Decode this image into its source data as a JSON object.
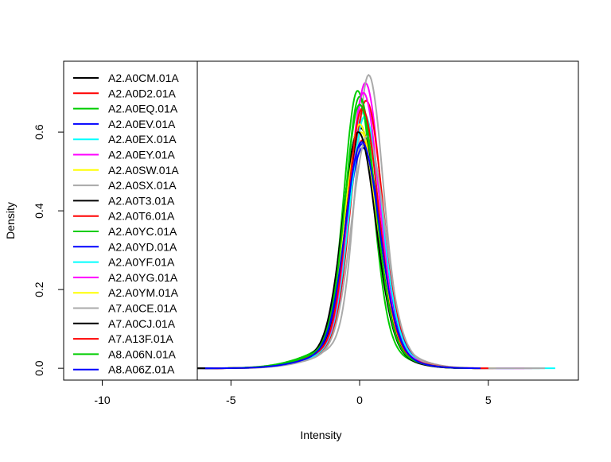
{
  "chart_data": {
    "type": "line",
    "title": "",
    "xlabel": "Intensity",
    "ylabel": "Density",
    "xlim": [
      -11.5,
      8.5
    ],
    "ylim": [
      -0.03,
      0.78
    ],
    "x_ticks": [
      -10,
      -5,
      0,
      5
    ],
    "x_tick_labels": [
      "-10",
      "-5",
      "0",
      "5"
    ],
    "y_ticks": [
      0.0,
      0.2,
      0.4,
      0.6
    ],
    "y_tick_labels": [
      "0.0",
      "0.2",
      "0.4",
      "0.6"
    ],
    "grid": false,
    "legend_position": "top-left",
    "series": [
      {
        "name": "A2.A0CM.01A",
        "color": "#000000",
        "x_min": -6.5,
        "x_max": 4.5,
        "mu": 0.0,
        "sigma_left": 0.58,
        "sigma_right": 0.64,
        "peak": 0.62
      },
      {
        "name": "A2.A0D2.01A",
        "color": "#ff0000",
        "x_min": -6.0,
        "x_max": 4.8,
        "mu": 0.12,
        "sigma_left": 0.6,
        "sigma_right": 0.66,
        "peak": 0.58
      },
      {
        "name": "A2.A0EQ.01A",
        "color": "#00cd00",
        "x_min": -5.5,
        "x_max": 4.2,
        "mu": -0.08,
        "sigma_left": 0.52,
        "sigma_right": 0.58,
        "peak": 0.705
      },
      {
        "name": "A2.A0EV.01A",
        "color": "#0000ff",
        "x_min": -6.2,
        "x_max": 4.6,
        "mu": 0.1,
        "sigma_left": 0.62,
        "sigma_right": 0.7,
        "peak": 0.57
      },
      {
        "name": "A2.A0EX.01A",
        "color": "#00ffff",
        "x_min": -5.0,
        "x_max": 7.6,
        "mu": 0.15,
        "sigma_left": 0.6,
        "sigma_right": 0.66,
        "peak": 0.65
      },
      {
        "name": "A2.A0EY.01A",
        "color": "#ff00ff",
        "x_min": -5.2,
        "x_max": 6.7,
        "mu": 0.22,
        "sigma_left": 0.53,
        "sigma_right": 0.6,
        "peak": 0.725
      },
      {
        "name": "A2.A0SW.01A",
        "color": "#ffff00",
        "x_min": -5.5,
        "x_max": 5.0,
        "mu": 0.05,
        "sigma_left": 0.6,
        "sigma_right": 0.66,
        "peak": 0.6
      },
      {
        "name": "A2.A0SX.01A",
        "color": "#aaaaaa",
        "x_min": -5.8,
        "x_max": 7.2,
        "mu": 0.35,
        "sigma_left": 0.5,
        "sigma_right": 0.56,
        "peak": 0.745
      },
      {
        "name": "A2.A0T3.01A",
        "color": "#000000",
        "x_min": -6.4,
        "x_max": 4.4,
        "mu": 0.05,
        "sigma_left": 0.56,
        "sigma_right": 0.62,
        "peak": 0.61
      },
      {
        "name": "A2.A0T6.01A",
        "color": "#ff0000",
        "x_min": -5.6,
        "x_max": 5.2,
        "mu": 0.25,
        "sigma_left": 0.57,
        "sigma_right": 0.63,
        "peak": 0.68
      },
      {
        "name": "A2.A0YC.01A",
        "color": "#00cd00",
        "x_min": -5.4,
        "x_max": 4.3,
        "mu": 0.0,
        "sigma_left": 0.54,
        "sigma_right": 0.6,
        "peak": 0.69
      },
      {
        "name": "A2.A0YD.01A",
        "color": "#0000ff",
        "x_min": -6.1,
        "x_max": 4.9,
        "mu": 0.12,
        "sigma_left": 0.64,
        "sigma_right": 0.72,
        "peak": 0.56
      },
      {
        "name": "A2.A0YF.01A",
        "color": "#00ffff",
        "x_min": -5.1,
        "x_max": 6.0,
        "mu": 0.2,
        "sigma_left": 0.58,
        "sigma_right": 0.64,
        "peak": 0.64
      },
      {
        "name": "A2.A0YG.01A",
        "color": "#ff00ff",
        "x_min": -5.3,
        "x_max": 6.4,
        "mu": 0.15,
        "sigma_left": 0.55,
        "sigma_right": 0.6,
        "peak": 0.7
      },
      {
        "name": "A2.A0YM.01A",
        "color": "#ffff00",
        "x_min": -5.5,
        "x_max": 5.3,
        "mu": 0.0,
        "sigma_left": 0.57,
        "sigma_right": 0.63,
        "peak": 0.62
      },
      {
        "name": "A7.A0CE.01A",
        "color": "#aaaaaa",
        "x_min": -5.9,
        "x_max": 7.0,
        "mu": 0.3,
        "sigma_left": 0.6,
        "sigma_right": 0.66,
        "peak": 0.59
      },
      {
        "name": "A7.A0CJ.01A",
        "color": "#000000",
        "x_min": -6.3,
        "x_max": 4.5,
        "mu": -0.05,
        "sigma_left": 0.6,
        "sigma_right": 0.66,
        "peak": 0.6
      },
      {
        "name": "A7.A13F.01A",
        "color": "#ff0000",
        "x_min": -5.7,
        "x_max": 5.0,
        "mu": 0.1,
        "sigma_left": 0.55,
        "sigma_right": 0.62,
        "peak": 0.66
      },
      {
        "name": "A8.A06N.01A",
        "color": "#00cd00",
        "x_min": -5.4,
        "x_max": 4.4,
        "mu": 0.0,
        "sigma_left": 0.56,
        "sigma_right": 0.62,
        "peak": 0.67
      },
      {
        "name": "A8.A06Z.01A",
        "color": "#0000ff",
        "x_min": -6.0,
        "x_max": 4.7,
        "mu": 0.08,
        "sigma_left": 0.62,
        "sigma_right": 0.68,
        "peak": 0.575
      }
    ]
  }
}
